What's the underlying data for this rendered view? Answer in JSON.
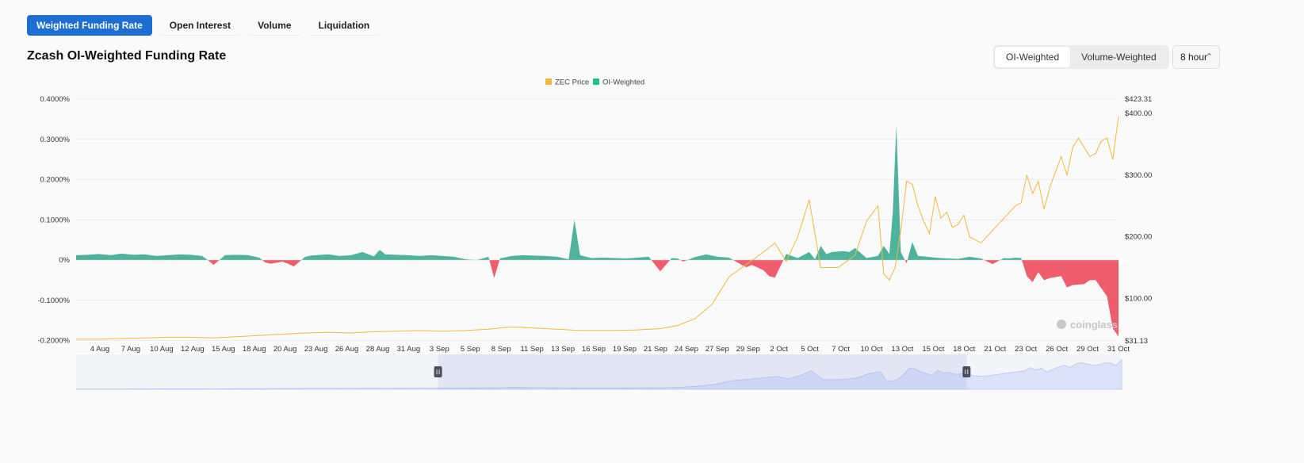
{
  "tabs": [
    {
      "label": "Weighted Funding Rate",
      "active": true
    },
    {
      "label": "Open Interest",
      "active": false
    },
    {
      "label": "Volume",
      "active": false
    },
    {
      "label": "Liquidation",
      "active": false
    }
  ],
  "title": "Zcash OI-Weighted Funding Rate",
  "weighting_toggle": {
    "options": [
      "OI-Weighted",
      "Volume-Weighted"
    ],
    "selected": "OI-Weighted"
  },
  "interval_select": {
    "value": "8 hour",
    "icon": "up-down-chevron-icon"
  },
  "watermark": "coinglass",
  "colors": {
    "price_line": "#f0b93b",
    "positive_fill": "#4db39e",
    "negative_fill": "#ef5c6b",
    "tab_active": "#1c6ed3",
    "navigator_fill": "#dbe3fa"
  },
  "chart_data": {
    "type": "area",
    "legend": [
      {
        "name": "ZEC Price",
        "color": "#f0b93b"
      },
      {
        "name": "OI-Weighted",
        "color": "#1fc18f"
      }
    ],
    "legend_position": "top-center",
    "grid": true,
    "y_left": {
      "ticks": [
        "0.4000%",
        "0.3000%",
        "0.2000%",
        "0.1000%",
        "0%",
        "-0.1000%",
        "-0.2000%"
      ],
      "range": [
        -0.2,
        0.4
      ],
      "unit": "%"
    },
    "y_right": {
      "ticks": [
        "$423.31",
        "$400.00",
        "$300.00",
        "$200.00",
        "$100.00",
        "$31.13"
      ],
      "range": [
        31.13,
        423.31
      ]
    },
    "x_ticks": [
      "4 Aug",
      "7 Aug",
      "10 Aug",
      "12 Aug",
      "15 Aug",
      "18 Aug",
      "20 Aug",
      "23 Aug",
      "26 Aug",
      "28 Aug",
      "31 Aug",
      "3 Sep",
      "5 Sep",
      "8 Sep",
      "11 Sep",
      "13 Sep",
      "16 Sep",
      "19 Sep",
      "21 Sep",
      "24 Sep",
      "27 Sep",
      "29 Sep",
      "2 Oct",
      "5 Oct",
      "7 Oct",
      "10 Oct",
      "13 Oct",
      "15 Oct",
      "18 Oct",
      "21 Oct",
      "23 Oct",
      "26 Oct",
      "29 Oct",
      "31 Oct"
    ],
    "x_start_day": 0,
    "x_end_day": 91.0,
    "series": [
      {
        "name": "ZEC Price",
        "axis": "right",
        "x": [
          0,
          2,
          4,
          6,
          8,
          10,
          12,
          14,
          16,
          18,
          20,
          22,
          24,
          26,
          28,
          30,
          32,
          34,
          36,
          38,
          40,
          42,
          44,
          45.5,
          47,
          49,
          51,
          52.5,
          54,
          55.5,
          57,
          58.5,
          60,
          61,
          62,
          63,
          64,
          65,
          66.5,
          68,
          69,
          70,
          70.5,
          71,
          71.5,
          72,
          72.5,
          73,
          73.5,
          74,
          74.5,
          75,
          75.5,
          76,
          76.5,
          77,
          77.5,
          78,
          79,
          80,
          81,
          82,
          82.5,
          83,
          83.5,
          84,
          84.5,
          85,
          85.5,
          86,
          86.5,
          87,
          87.5,
          88,
          88.5,
          89,
          89.5,
          90,
          90.5,
          91
        ],
        "values": [
          34,
          34,
          35,
          36,
          37,
          37,
          36,
          38,
          40,
          42,
          44,
          45,
          44,
          46,
          47,
          48,
          47,
          48,
          50,
          54,
          52,
          50,
          48,
          48,
          48,
          49,
          51,
          56,
          67,
          90,
          135,
          155,
          175,
          190,
          160,
          200,
          260,
          150,
          150,
          170,
          225,
          250,
          140,
          130,
          150,
          210,
          290,
          285,
          250,
          225,
          205,
          265,
          230,
          240,
          215,
          220,
          235,
          200,
          190,
          210,
          230,
          250,
          255,
          300,
          270,
          290,
          245,
          280,
          305,
          330,
          300,
          345,
          360,
          345,
          330,
          335,
          355,
          360,
          325,
          395
        ]
      },
      {
        "name": "OI-Weighted",
        "axis": "left",
        "unit": "%",
        "x": [
          0,
          1,
          2,
          3,
          4,
          5,
          6,
          7,
          8,
          9,
          10,
          11,
          11.5,
          12,
          13,
          14,
          15,
          16,
          16.5,
          17,
          18,
          18.5,
          19,
          20,
          20.5,
          21,
          22,
          23,
          24,
          25,
          26,
          26.5,
          27,
          28,
          29,
          30,
          31,
          32,
          33,
          34,
          35,
          36,
          36.5,
          37,
          38,
          39,
          40,
          41,
          42,
          43,
          43.5,
          44,
          45,
          46,
          47,
          48,
          49,
          50,
          51,
          52,
          52.5,
          53,
          54,
          55,
          56,
          57,
          58,
          58.5,
          59,
          60,
          60.5,
          61,
          62,
          63,
          64,
          64.5,
          65,
          65.5,
          66,
          67,
          67.5,
          68,
          69,
          70,
          70.5,
          71,
          71.3,
          71.6,
          72,
          72.5,
          73,
          73.5,
          74,
          75,
          76,
          77,
          78,
          79,
          80,
          81,
          81.5,
          82,
          82.5,
          83,
          83.5,
          84,
          84.5,
          85,
          86,
          86.5,
          87,
          88,
          88.5,
          89,
          89.5,
          90,
          90.5,
          91
        ],
        "values": [
          0.012,
          0.013,
          0.015,
          0.012,
          0.016,
          0.013,
          0.014,
          0.01,
          0.012,
          0.014,
          0.013,
          0.01,
          0.0,
          -0.012,
          0.012,
          0.013,
          0.012,
          0.006,
          -0.006,
          -0.009,
          -0.004,
          -0.009,
          -0.016,
          0.008,
          0.011,
          0.012,
          0.014,
          0.01,
          0.012,
          0.02,
          0.009,
          0.025,
          0.014,
          0.013,
          0.012,
          0.01,
          0.012,
          0.01,
          0.008,
          0.002,
          0.0,
          0.008,
          -0.045,
          0.004,
          0.01,
          0.012,
          0.011,
          0.01,
          0.008,
          0.002,
          0.1,
          0.012,
          0.005,
          0.006,
          0.005,
          0.004,
          0.006,
          0.008,
          -0.028,
          0.005,
          0.004,
          -0.004,
          0.007,
          0.014,
          0.008,
          0.006,
          -0.01,
          -0.018,
          -0.012,
          -0.025,
          -0.04,
          -0.044,
          0.015,
          0.005,
          0.02,
          0.002,
          0.035,
          0.015,
          0.02,
          0.022,
          0.02,
          0.03,
          0.005,
          0.01,
          0.035,
          0.015,
          0.12,
          0.335,
          0.02,
          -0.008,
          0.045,
          0.01,
          0.009,
          0.006,
          0.004,
          0.003,
          0.008,
          0.004,
          -0.01,
          0.005,
          0.004,
          0.006,
          0.005,
          -0.04,
          -0.055,
          -0.03,
          -0.05,
          -0.045,
          -0.04,
          -0.068,
          -0.062,
          -0.06,
          -0.05,
          -0.05,
          -0.07,
          -0.09,
          -0.17,
          -0.19
        ]
      }
    ],
    "navigator": {
      "range_start_day": 31.5,
      "range_end_day": 77.5
    }
  }
}
